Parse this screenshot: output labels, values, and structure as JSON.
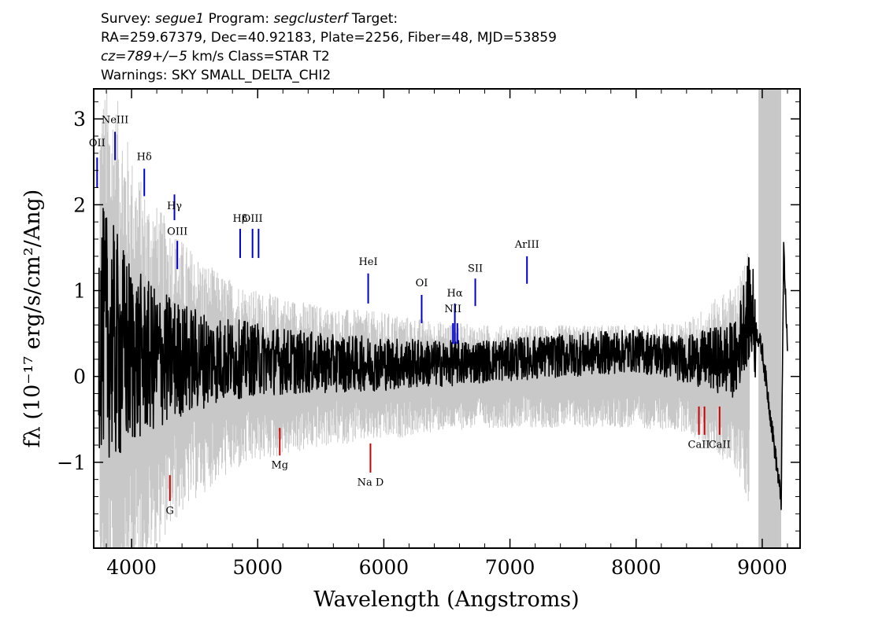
{
  "header": {
    "line1": {
      "survey_label": "Survey: ",
      "survey": "segue1",
      "program_label": " Program: ",
      "program": "segclusterf",
      "target_label": " Target:"
    },
    "line2": "RA=259.67379, Dec=40.92183, Plate=2256, Fiber=48, MJD=53859",
    "line3": {
      "cz": "cz=789+/−5",
      "rest": " km/s Class=STAR T2"
    },
    "line4": "Warnings: SKY SMALL_DELTA_CHI2"
  },
  "chart_data": {
    "type": "line",
    "xlabel": "Wavelength (Angstroms)",
    "ylabel": "fλ (10⁻¹⁷ erg/s/cm²/Ang)",
    "xlim": [
      3700,
      9300
    ],
    "ylim": [
      -2.0,
      3.35
    ],
    "x_ticks": [
      4000,
      5000,
      6000,
      7000,
      8000,
      9000
    ],
    "y_ticks": [
      -1,
      0,
      1,
      2,
      3
    ],
    "y_tick_labels": [
      "−1",
      "0",
      "1",
      "2",
      "3"
    ],
    "series": [
      {
        "role": "error",
        "color": "#c8c8c8",
        "x": [
          3750,
          3800,
          3850,
          3900,
          4000,
          4100,
          4200,
          4300,
          4400,
          4500,
          4700,
          5000,
          5300,
          5600,
          6000,
          6400,
          6800,
          7200,
          7600,
          8000,
          8400,
          8800,
          8900
        ],
        "values": [
          3.4,
          3.4,
          3.3,
          3.2,
          2.6,
          2.2,
          2.0,
          1.8,
          1.6,
          1.45,
          1.2,
          1.0,
          0.9,
          0.8,
          0.75,
          0.65,
          0.6,
          0.6,
          0.6,
          0.6,
          0.65,
          1.1,
          1.5
        ]
      },
      {
        "role": "flux",
        "color": "#000000",
        "x": [
          3740,
          3800,
          3850,
          3900,
          4000,
          4200,
          4500,
          5000,
          5500,
          6000,
          6500,
          7000,
          7500,
          8000,
          8400,
          8800,
          8850,
          8900,
          9000,
          9150,
          9170,
          9200
        ],
        "values": [
          0.6,
          0.5,
          0.4,
          0.3,
          0.25,
          0.2,
          0.2,
          0.2,
          0.15,
          0.15,
          0.15,
          0.2,
          0.25,
          0.3,
          0.2,
          0.2,
          0.6,
          0.8,
          0.3,
          -1.45,
          1.5,
          0.3
        ]
      }
    ],
    "sky_band": {
      "x": [
        8970,
        9150
      ],
      "color": "#c8c8c8"
    },
    "emission_lines": [
      {
        "label": "OII",
        "x": 3727,
        "y_bottom": 2.2,
        "y_top": 2.55,
        "label_y": 2.68,
        "color": "#0000cc"
      },
      {
        "label": "NeIII",
        "x": 3869,
        "y_bottom": 2.52,
        "y_top": 2.85,
        "label_y": 2.95,
        "color": "#0000cc"
      },
      {
        "label": "Hδ",
        "x": 4101,
        "y_bottom": 2.1,
        "y_top": 2.42,
        "label_y": 2.52,
        "color": "#0000cc"
      },
      {
        "label": "Hγ",
        "x": 4340,
        "y_bottom": 1.82,
        "y_top": 2.12,
        "label_y": 1.95,
        "color": "#0000cc"
      },
      {
        "label": "OIII",
        "x": 4363,
        "y_bottom": 1.25,
        "y_top": 1.58,
        "label_y": 1.65,
        "color": "#0000cc"
      },
      {
        "label": "Hβ",
        "x": 4861,
        "y_bottom": 1.38,
        "y_top": 1.72,
        "label_y": 1.8,
        "color": "#0000cc"
      },
      {
        "label": "OIII",
        "x": 4959,
        "y_bottom": 1.38,
        "y_top": 1.72,
        "label_y": 1.8,
        "color": "#0000cc"
      },
      {
        "label": "OIII",
        "x": 5007,
        "y_bottom": 1.38,
        "y_top": 1.72,
        "label_y": 1.8,
        "color": "#0000cc"
      },
      {
        "label": "HeI",
        "x": 5876,
        "y_bottom": 0.85,
        "y_top": 1.2,
        "label_y": 1.3,
        "color": "#0000cc"
      },
      {
        "label": "OI",
        "x": 6300,
        "y_bottom": 0.62,
        "y_top": 0.95,
        "label_y": 1.05,
        "color": "#0000cc"
      },
      {
        "label": "NII",
        "x": 6548,
        "y_bottom": 0.38,
        "y_top": 0.62,
        "label_y": 0.75,
        "color": "#0000cc"
      },
      {
        "label": "Hα",
        "x": 6563,
        "y_bottom": 0.38,
        "y_top": 0.85,
        "label_y": 0.93,
        "color": "#0000cc"
      },
      {
        "label": "NII",
        "x": 6583,
        "y_bottom": 0.38,
        "y_top": 0.62,
        "label_y": 0.75,
        "color": "#0000cc"
      },
      {
        "label": "SII",
        "x": 6725,
        "y_bottom": 0.82,
        "y_top": 1.14,
        "label_y": 1.22,
        "color": "#0000cc"
      },
      {
        "label": "ArIII",
        "x": 7135,
        "y_bottom": 1.08,
        "y_top": 1.4,
        "label_y": 1.5,
        "color": "#0000cc"
      }
    ],
    "absorption_lines": [
      {
        "label": "G",
        "x": 4304,
        "y_top": -1.15,
        "y_bottom": -1.45,
        "label_y": -1.6,
        "color": "#cc0000"
      },
      {
        "label": "Mg",
        "x": 5175,
        "y_top": -0.6,
        "y_bottom": -0.92,
        "label_y": -1.07,
        "color": "#cc0000"
      },
      {
        "label": "Na D",
        "x": 5894,
        "y_top": -0.78,
        "y_bottom": -1.12,
        "label_y": -1.27,
        "color": "#cc0000"
      },
      {
        "label": "CaII",
        "x": 8498,
        "y_top": -0.35,
        "y_bottom": -0.68,
        "label_y": -0.83,
        "color": "#cc0000"
      },
      {
        "label": "CaII",
        "x": 8542,
        "y_top": -0.35,
        "y_bottom": -0.68,
        "label_y": -0.83,
        "color": "#cc0000"
      },
      {
        "label": "CaII",
        "x": 8662,
        "y_top": -0.35,
        "y_bottom": -0.68,
        "label_y": -0.83,
        "color": "#cc0000"
      }
    ],
    "grid": false,
    "legend": "none"
  }
}
